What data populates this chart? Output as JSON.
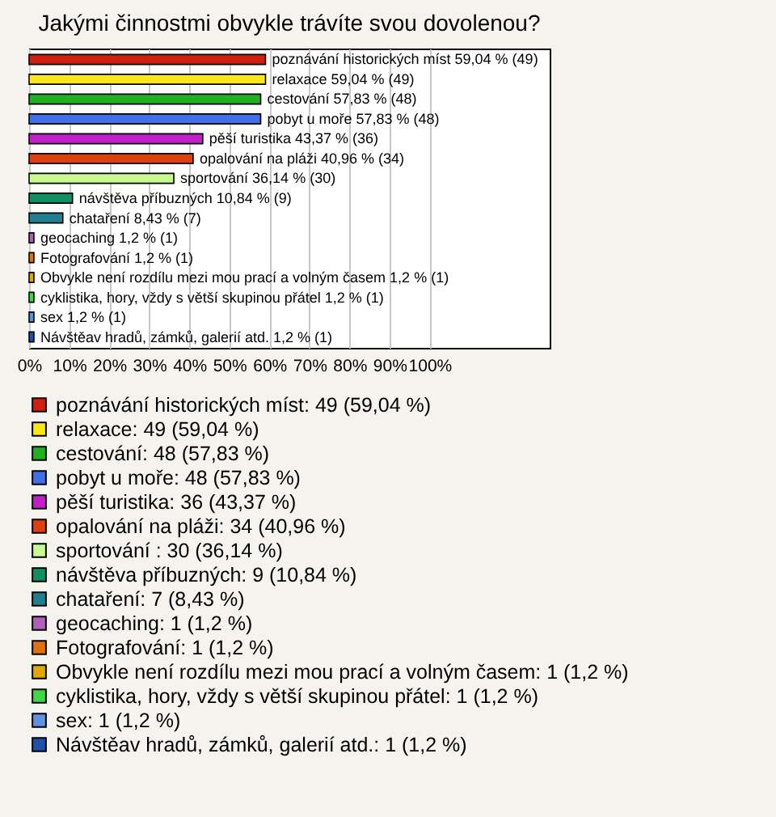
{
  "chart_data": {
    "type": "bar",
    "orientation": "horizontal",
    "title": "Jakými činnostmi obvykle trávíte svou dovolenou?",
    "categories": [
      null,
      null,
      null,
      null,
      null,
      null,
      null,
      null,
      null,
      null,
      null,
      null,
      null,
      null,
      null
    ],
    "series": [
      {
        "name": "poznávání historických míst: 49 (59,04 %)",
        "color": "#d02010",
        "values": [
          59.04,
          null,
          null,
          null,
          null,
          null,
          null,
          null,
          null,
          null,
          null,
          null,
          null,
          null,
          null
        ],
        "value_labels": [
          "poznávání historických míst 59,04 % (49)",
          null,
          null,
          null,
          null,
          null,
          null,
          null,
          null,
          null,
          null,
          null,
          null,
          null,
          null
        ]
      },
      {
        "name": "relaxace: 49 (59,04 %)",
        "color": "#f8e818",
        "values": [
          null,
          59.04,
          null,
          null,
          null,
          null,
          null,
          null,
          null,
          null,
          null,
          null,
          null,
          null,
          null
        ],
        "value_labels": [
          null,
          "relaxace 59,04 % (49)",
          null,
          null,
          null,
          null,
          null,
          null,
          null,
          null,
          null,
          null,
          null,
          null,
          null
        ]
      },
      {
        "name": "cestování: 48 (57,83 %)",
        "color": "#20b020",
        "values": [
          null,
          null,
          57.83,
          null,
          null,
          null,
          null,
          null,
          null,
          null,
          null,
          null,
          null,
          null,
          null
        ],
        "value_labels": [
          null,
          null,
          "cestování 57,83 % (48)",
          null,
          null,
          null,
          null,
          null,
          null,
          null,
          null,
          null,
          null,
          null,
          null
        ]
      },
      {
        "name": "pobyt u moře: 48 (57,83 %)",
        "color": "#4070e8",
        "values": [
          null,
          null,
          null,
          57.83,
          null,
          null,
          null,
          null,
          null,
          null,
          null,
          null,
          null,
          null,
          null
        ],
        "value_labels": [
          null,
          null,
          null,
          "pobyt u moře 57,83 % (48)",
          null,
          null,
          null,
          null,
          null,
          null,
          null,
          null,
          null,
          null,
          null
        ]
      },
      {
        "name": "pěší turistika: 36 (43,37 %)",
        "color": "#c020c8",
        "values": [
          null,
          null,
          null,
          null,
          43.37,
          null,
          null,
          null,
          null,
          null,
          null,
          null,
          null,
          null,
          null
        ],
        "value_labels": [
          null,
          null,
          null,
          null,
          "pěší turistika 43,37 % (36)",
          null,
          null,
          null,
          null,
          null,
          null,
          null,
          null,
          null,
          null
        ]
      },
      {
        "name": "opalování na pláži: 34 (40,96 %)",
        "color": "#e04010",
        "values": [
          null,
          null,
          null,
          null,
          null,
          40.96,
          null,
          null,
          null,
          null,
          null,
          null,
          null,
          null,
          null
        ],
        "value_labels": [
          null,
          null,
          null,
          null,
          null,
          "opalování na pláži 40,96 % (34)",
          null,
          null,
          null,
          null,
          null,
          null,
          null,
          null,
          null
        ]
      },
      {
        "name": "sportování : 30 (36,14 %)",
        "color": "#c8f890",
        "values": [
          null,
          null,
          null,
          null,
          null,
          null,
          36.14,
          null,
          null,
          null,
          null,
          null,
          null,
          null,
          null
        ],
        "value_labels": [
          null,
          null,
          null,
          null,
          null,
          null,
          "sportování  36,14 % (30)",
          null,
          null,
          null,
          null,
          null,
          null,
          null,
          null
        ]
      },
      {
        "name": "návštěva příbuzných: 9 (10,84 %)",
        "color": "#109060",
        "values": [
          null,
          null,
          null,
          null,
          null,
          null,
          null,
          10.84,
          null,
          null,
          null,
          null,
          null,
          null,
          null
        ],
        "value_labels": [
          null,
          null,
          null,
          null,
          null,
          null,
          null,
          "návštěva příbuzných 10,84 % (9)",
          null,
          null,
          null,
          null,
          null,
          null,
          null
        ]
      },
      {
        "name": "chataření: 7 (8,43 %)",
        "color": "#208090",
        "values": [
          null,
          null,
          null,
          null,
          null,
          null,
          null,
          null,
          8.43,
          null,
          null,
          null,
          null,
          null,
          null
        ],
        "value_labels": [
          null,
          null,
          null,
          null,
          null,
          null,
          null,
          null,
          "chataření 8,43 % (7)",
          null,
          null,
          null,
          null,
          null,
          null
        ]
      },
      {
        "name": "geocaching: 1 (1,2 %)",
        "color": "#b060b8",
        "values": [
          null,
          null,
          null,
          null,
          null,
          null,
          null,
          null,
          null,
          1.2,
          null,
          null,
          null,
          null,
          null
        ],
        "value_labels": [
          null,
          null,
          null,
          null,
          null,
          null,
          null,
          null,
          null,
          "geocaching 1,2 % (1)",
          null,
          null,
          null,
          null,
          null
        ]
      },
      {
        "name": "Fotografování: 1 (1,2 %)",
        "color": "#e07010",
        "values": [
          null,
          null,
          null,
          null,
          null,
          null,
          null,
          null,
          null,
          null,
          1.2,
          null,
          null,
          null,
          null
        ],
        "value_labels": [
          null,
          null,
          null,
          null,
          null,
          null,
          null,
          null,
          null,
          null,
          "Fotografování 1,2 % (1)",
          null,
          null,
          null,
          null
        ]
      },
      {
        "name": "Obvykle není rozdílu mezi mou prací a volným časem: 1 (1,2 %)",
        "color": "#e0a800",
        "values": [
          null,
          null,
          null,
          null,
          null,
          null,
          null,
          null,
          null,
          null,
          null,
          1.2,
          null,
          null,
          null
        ],
        "value_labels": [
          null,
          null,
          null,
          null,
          null,
          null,
          null,
          null,
          null,
          null,
          null,
          "Obvykle není rozdílu mezi mou prací a volným časem 1,2 % (1)",
          null,
          null,
          null
        ]
      },
      {
        "name": "cyklistika, hory, vždy s větší skupinou přátel: 1 (1,2 %)",
        "color": "#40d840",
        "values": [
          null,
          null,
          null,
          null,
          null,
          null,
          null,
          null,
          null,
          null,
          null,
          null,
          1.2,
          null,
          null
        ],
        "value_labels": [
          null,
          null,
          null,
          null,
          null,
          null,
          null,
          null,
          null,
          null,
          null,
          null,
          "cyklistika, hory, vždy s větší skupinou přátel 1,2 % (1)",
          null,
          null
        ]
      },
      {
        "name": "sex: 1 (1,2 %)",
        "color": "#6090e0",
        "values": [
          null,
          null,
          null,
          null,
          null,
          null,
          null,
          null,
          null,
          null,
          null,
          null,
          null,
          1.2,
          null
        ],
        "value_labels": [
          null,
          null,
          null,
          null,
          null,
          null,
          null,
          null,
          null,
          null,
          null,
          null,
          null,
          "sex 1,2 % (1)",
          null
        ]
      },
      {
        "name": "Návštěav hradů, zámků, galerií atd.: 1 (1,2 %)",
        "color": "#2050a8",
        "values": [
          null,
          null,
          null,
          null,
          null,
          null,
          null,
          null,
          null,
          null,
          null,
          null,
          null,
          null,
          1.2
        ],
        "value_labels": [
          null,
          null,
          null,
          null,
          null,
          null,
          null,
          null,
          null,
          null,
          null,
          null,
          null,
          null,
          "Návštěav hradů, zámků, galerií atd. 1,2 % (1)"
        ]
      }
    ],
    "xlim": [
      0,
      130
    ],
    "xticks": [
      {
        "value": 0,
        "label": "0%"
      },
      {
        "value": 10,
        "label": "10%"
      },
      {
        "value": 20,
        "label": "20%"
      },
      {
        "value": 30,
        "label": "30%"
      },
      {
        "value": 40,
        "label": "40%"
      },
      {
        "value": 50,
        "label": "50%"
      },
      {
        "value": 60,
        "label": "60%"
      },
      {
        "value": 70,
        "label": "70%"
      },
      {
        "value": 80,
        "label": "80%"
      },
      {
        "value": 90,
        "label": "90%"
      },
      {
        "value": 100,
        "label": "100%"
      }
    ],
    "grid": "x",
    "legend": "bottom"
  }
}
